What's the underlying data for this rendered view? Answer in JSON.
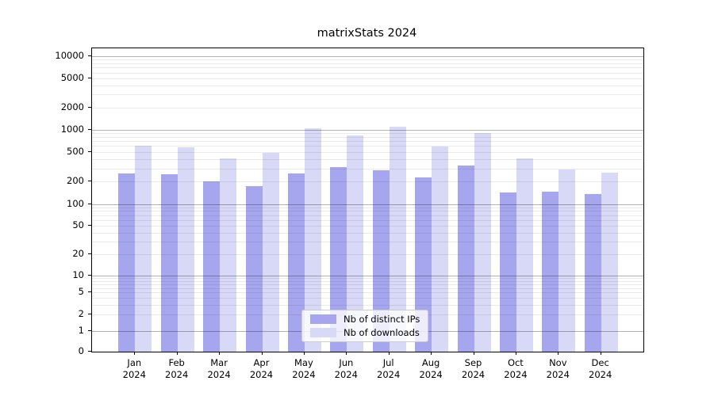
{
  "title": "matrixStats 2024",
  "chart_data": {
    "type": "bar",
    "title": "matrixStats 2024",
    "categories": [
      "Jan 2024",
      "Feb 2024",
      "Mar 2024",
      "Apr 2024",
      "May 2024",
      "Jun 2024",
      "Jul 2024",
      "Aug 2024",
      "Sep 2024",
      "Oct 2024",
      "Nov 2024",
      "Dec 2024"
    ],
    "series": [
      {
        "name": "Nb of distinct IPs",
        "color": "#a6a6ef",
        "values": [
          260,
          250,
          200,
          172,
          260,
          315,
          285,
          228,
          330,
          143,
          146,
          135
        ]
      },
      {
        "name": "Nb of downloads",
        "color": "#d8d8f7",
        "values": [
          610,
          575,
          410,
          480,
          1030,
          830,
          1100,
          590,
          890,
          410,
          290,
          265
        ]
      }
    ],
    "yscale": "symlog",
    "yticks": [
      0,
      1,
      2,
      5,
      10,
      20,
      50,
      100,
      200,
      500,
      1000,
      2000,
      5000,
      10000
    ],
    "ylim": [
      0,
      12000
    ],
    "xlabel": "",
    "ylabel": "",
    "grid": "major and minor horizontal gridlines, drawn over bars",
    "legend_position": "lower center inside plot"
  },
  "legend": {
    "items": [
      {
        "label": "Nb of distinct IPs",
        "color": "#a6a6ef"
      },
      {
        "label": "Nb of downloads",
        "color": "#d8d8f7"
      }
    ]
  }
}
